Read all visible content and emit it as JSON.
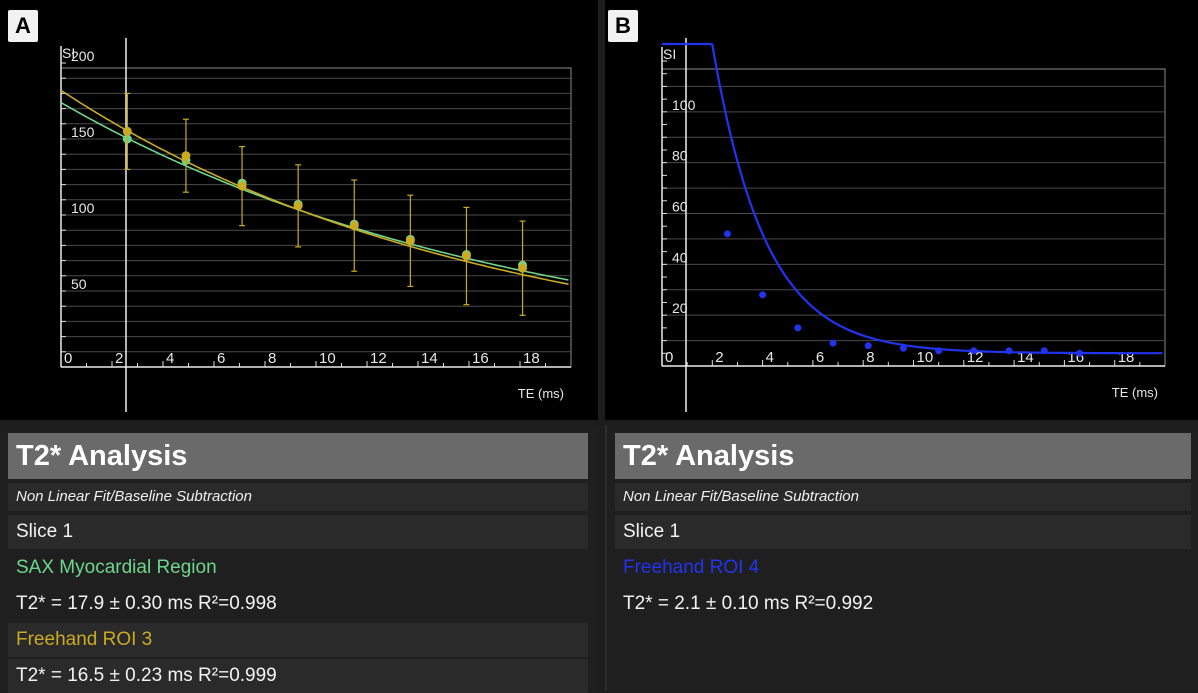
{
  "panels": {
    "a": {
      "label": "A"
    },
    "b": {
      "label": "B"
    }
  },
  "colors": {
    "green": "#6ed68b",
    "yellow": "#c9aa22",
    "blue": "#2233ee",
    "grid": "#4a4a4a",
    "plot_border": "#8c8c8c"
  },
  "chart_data": [
    {
      "type": "scatter",
      "panel": "A",
      "xlabel": "TE (ms)",
      "ylabel": "SI",
      "xlim": [
        0,
        20
      ],
      "ylim": [
        0,
        200
      ],
      "x_ticks": [
        "0",
        "2",
        "4",
        "6",
        "8",
        "10",
        "12",
        "14",
        "16",
        "18"
      ],
      "y_ticks": [
        "50",
        "100",
        "150",
        "200"
      ],
      "grid": true,
      "series": [
        {
          "name": "SAX Myocardial Region",
          "color": "#6ed68b",
          "x": [
            2.6,
            4.9,
            7.1,
            9.3,
            11.5,
            13.7,
            15.9,
            18.1
          ],
          "y": [
            150,
            136,
            121,
            107,
            94,
            84,
            74,
            67
          ],
          "fit": {
            "a0": 174,
            "t2": 17.9,
            "c": 0
          }
        },
        {
          "name": "Freehand ROI 3",
          "color": "#c9aa22",
          "x": [
            2.6,
            4.9,
            7.1,
            9.3,
            11.5,
            13.7,
            15.9,
            18.1
          ],
          "y": [
            155,
            139,
            119,
            106,
            93,
            83,
            73,
            65
          ],
          "err": [
            25,
            24,
            26,
            27,
            30,
            30,
            32,
            31
          ],
          "fit": {
            "a0": 182,
            "t2": 16.5,
            "c": 0
          }
        }
      ]
    },
    {
      "type": "scatter",
      "panel": "B",
      "xlabel": "TE (ms)",
      "ylabel": "SI",
      "xlim": [
        0,
        20
      ],
      "ylim": [
        0,
        120
      ],
      "x_ticks": [
        "0",
        "2",
        "4",
        "6",
        "8",
        "10",
        "12",
        "14",
        "16",
        "18"
      ],
      "y_ticks": [
        "20",
        "40",
        "60",
        "80",
        "100"
      ],
      "grid": true,
      "series": [
        {
          "name": "Freehand ROI 4",
          "color": "#2233ee",
          "x": [
            2.6,
            4.0,
            5.4,
            6.8,
            8.2,
            9.6,
            11.0,
            12.4,
            13.8,
            15.2,
            16.6
          ],
          "y": [
            52,
            28,
            15,
            9,
            8,
            7,
            6,
            6,
            6,
            6,
            5
          ],
          "fit": {
            "a0": 315,
            "t2": 2.1,
            "c": 5
          }
        }
      ]
    }
  ],
  "analysis": {
    "a": {
      "title": "T2* Analysis",
      "method": "Non Linear Fit/Baseline Subtraction",
      "slice": "Slice 1",
      "roi1_name": "SAX Myocardial Region",
      "roi1_result": "T2* = 17.9 ± 0.30 ms R²=0.998",
      "roi2_name": "Freehand ROI 3",
      "roi2_result": "T2* = 16.5 ± 0.23 ms R²=0.999"
    },
    "b": {
      "title": "T2* Analysis",
      "method": "Non Linear Fit/Baseline Subtraction",
      "slice": "Slice 1",
      "roi1_name": "Freehand ROI 4",
      "roi1_result": "T2* = 2.1 ± 0.10 ms R²=0.992"
    }
  }
}
